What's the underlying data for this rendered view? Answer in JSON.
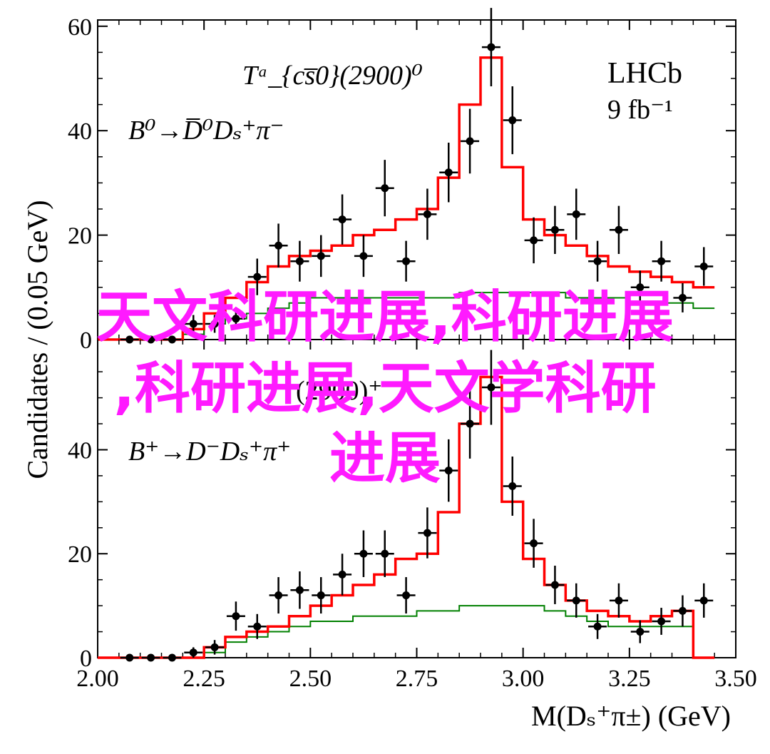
{
  "chart_data": [
    {
      "type": "histogram_with_points",
      "decay_text": "B⁰→D̅⁰Dₛ⁺π⁻",
      "state_text": "Tᵃ_{cs̅0}(2900)⁰",
      "experiment": "LHCb",
      "luminosity": "9 fb⁻¹",
      "ylabel": "Candidates / (0.05 GeV)",
      "ylim": [
        0,
        60
      ],
      "yticks": [
        0,
        20,
        40,
        60
      ],
      "xlim": [
        2.0,
        3.5
      ],
      "data_points": {
        "x": [
          2.075,
          2.125,
          2.175,
          2.225,
          2.275,
          2.325,
          2.375,
          2.425,
          2.475,
          2.525,
          2.575,
          2.625,
          2.675,
          2.725,
          2.775,
          2.825,
          2.875,
          2.925,
          2.975,
          3.025,
          3.075,
          3.125,
          3.175,
          3.225,
          3.275,
          3.325,
          3.375,
          3.425
        ],
        "y": [
          0,
          0,
          0,
          3,
          3,
          4,
          12,
          18,
          15,
          16,
          23,
          16,
          29,
          15,
          24,
          32,
          38,
          56,
          42,
          19,
          21,
          24,
          15,
          21,
          10,
          15,
          8,
          14
        ],
        "yerr": [
          0,
          0,
          0,
          1.7,
          1.7,
          2,
          3.5,
          4.2,
          3.9,
          4,
          4.8,
          4,
          5.4,
          3.9,
          4.9,
          5.7,
          6.2,
          7.5,
          6.5,
          4.4,
          4.6,
          4.9,
          3.9,
          4.6,
          3.2,
          3.9,
          2.8,
          3.7
        ]
      },
      "total_fit_red": [
        0,
        0,
        0,
        0,
        2,
        5,
        8,
        11,
        14,
        16,
        17,
        18,
        20,
        21,
        23,
        25,
        31,
        45,
        54,
        33,
        23,
        20,
        18,
        16,
        14,
        13,
        12,
        11,
        10
      ],
      "component_green": [
        0,
        0,
        0,
        0,
        1,
        3,
        4,
        5,
        6,
        7,
        8,
        8,
        8,
        8,
        8,
        8,
        8,
        9,
        9,
        9,
        9,
        9,
        8,
        8,
        8,
        7,
        7,
        7,
        6
      ],
      "fit_edges": [
        2.0,
        2.05,
        2.1,
        2.15,
        2.2,
        2.25,
        2.3,
        2.35,
        2.4,
        2.45,
        2.5,
        2.55,
        2.6,
        2.65,
        2.7,
        2.75,
        2.8,
        2.85,
        2.9,
        2.95,
        3.0,
        3.05,
        3.1,
        3.15,
        3.2,
        3.25,
        3.3,
        3.35,
        3.4,
        3.45
      ]
    },
    {
      "type": "histogram_with_points",
      "decay_text": "B⁺→D⁻Dₛ⁺π⁺",
      "state_text": "(2900)⁺",
      "ylim": [
        0,
        60
      ],
      "yticks": [
        0,
        20,
        40
      ],
      "xlim": [
        2.0,
        3.5
      ],
      "xticks": [
        2.0,
        2.25,
        2.5,
        2.75,
        3.0,
        3.25,
        3.5
      ],
      "xtick_labels": [
        "2.00",
        "2.25",
        "2.50",
        "2.75",
        "3.00",
        "3.25",
        "3.50"
      ],
      "xlabel": "M(Dₛ⁺π±) (GeV)",
      "data_points": {
        "x": [
          2.075,
          2.125,
          2.175,
          2.225,
          2.275,
          2.325,
          2.375,
          2.425,
          2.475,
          2.525,
          2.575,
          2.625,
          2.675,
          2.725,
          2.775,
          2.825,
          2.875,
          2.925,
          2.975,
          3.025,
          3.075,
          3.125,
          3.175,
          3.225,
          3.275,
          3.325,
          3.375,
          3.425
        ],
        "y": [
          0,
          0,
          0,
          1,
          2,
          8,
          6,
          12,
          13,
          12,
          16,
          20,
          20,
          12,
          24,
          36,
          45,
          52,
          33,
          22,
          14,
          11,
          6,
          11,
          5,
          7,
          9,
          11
        ],
        "yerr": [
          0,
          0,
          0,
          1,
          1.4,
          2.8,
          2.4,
          3.5,
          3.6,
          3.5,
          4,
          4.5,
          4.5,
          3.5,
          4.9,
          6,
          6.7,
          7.2,
          5.7,
          4.7,
          3.7,
          3.3,
          2.4,
          3.3,
          2.2,
          2.6,
          3,
          3.3
        ]
      },
      "total_fit_red": [
        0,
        0,
        0,
        0,
        0,
        2,
        4,
        5,
        6,
        8,
        10,
        12,
        14,
        16,
        19,
        20,
        28,
        45,
        54,
        30,
        19,
        14,
        11,
        9,
        8,
        7,
        8,
        9,
        0
      ],
      "component_green": [
        0,
        0,
        0,
        0,
        0,
        1,
        3,
        4,
        5,
        6,
        7,
        7,
        8,
        8,
        8,
        9,
        9,
        10,
        10,
        10,
        10,
        9,
        8,
        7,
        6,
        6,
        6,
        6,
        0
      ],
      "fit_edges": [
        2.0,
        2.05,
        2.1,
        2.15,
        2.2,
        2.25,
        2.3,
        2.35,
        2.4,
        2.45,
        2.5,
        2.55,
        2.6,
        2.65,
        2.7,
        2.75,
        2.8,
        2.85,
        2.9,
        2.95,
        3.0,
        3.05,
        3.1,
        3.15,
        3.2,
        3.25,
        3.3,
        3.35,
        3.4,
        3.45
      ]
    }
  ],
  "overlay": {
    "line1": "天文科研进展,科研进展",
    "line2": ",科研进展,天文学科研",
    "line3": "进展",
    "color": "#ff1aff"
  },
  "colors": {
    "fit_total": "#ff0000",
    "fit_component": "#008000",
    "data": "#000000"
  }
}
